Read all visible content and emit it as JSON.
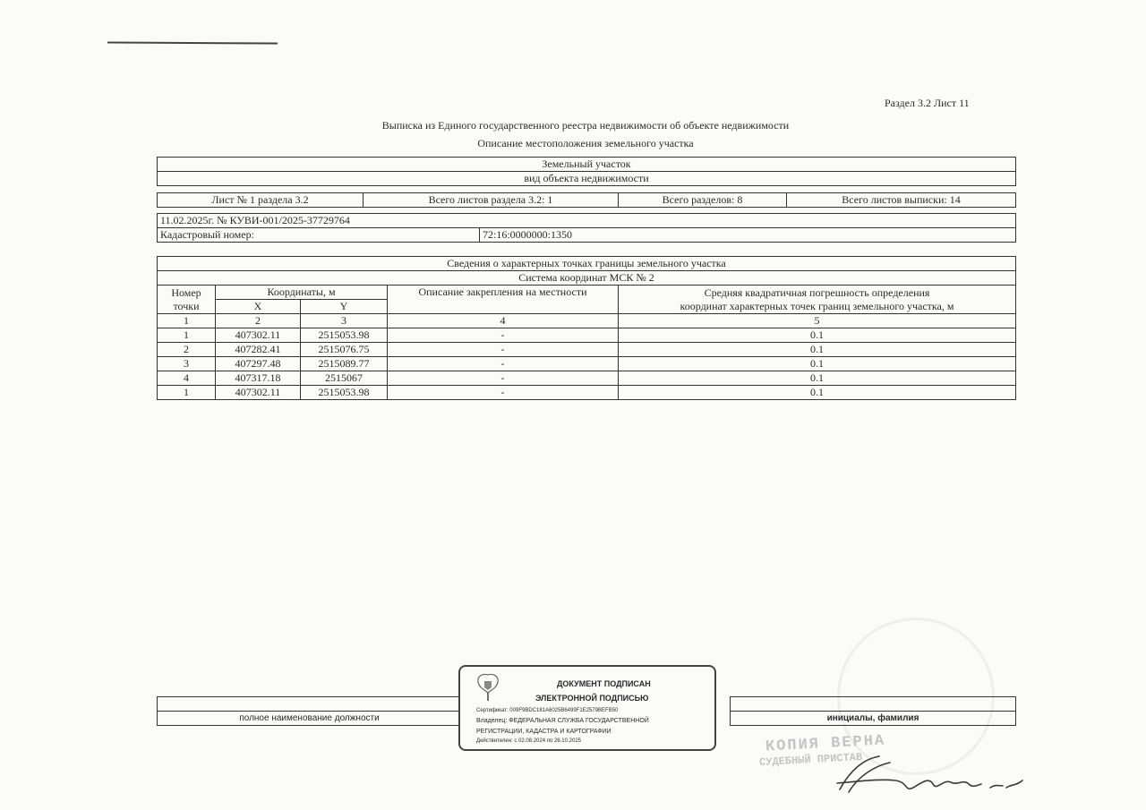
{
  "header": {
    "section_sheet": "Раздел 3.2 Лист 11",
    "title": "Выписка из Единого государственного реестра недвижимости об объекте недвижимости",
    "subtitle": "Описание местоположения земельного участка"
  },
  "object": {
    "type": "Земельный участок",
    "type_caption": "вид объекта недвижимости"
  },
  "sheets": {
    "sheet": "Лист № 1 раздела 3.2",
    "section_sheets": "Всего листов раздела 3.2: 1",
    "sections": "Всего разделов: 8",
    "extract_sheets": "Всего листов выписки: 14"
  },
  "record": {
    "date_number": "11.02.2025г. № КУВИ-001/2025-37729764",
    "cadastral_label": "Кадастровый номер:",
    "cadastral_number": "72:16:0000000:1350"
  },
  "points_table": {
    "title": "Сведения о характерных точках границы земельного участка",
    "system": "Система координат МСК № 2",
    "col_point": "Номер точки",
    "col_coords": "Координаты, м",
    "col_x": "X",
    "col_y": "Y",
    "col_desc": "Описание закрепления на местности",
    "col_error_1": "Средняя квадратичная погрешность определения",
    "col_error_2": "координат характерных точек границ земельного участка, м",
    "col_numbers": [
      "1",
      "2",
      "3",
      "4",
      "5"
    ],
    "rows": [
      {
        "n": "1",
        "x": "407302.11",
        "y": "2515053.98",
        "desc": "-",
        "err": "0.1"
      },
      {
        "n": "2",
        "x": "407282.41",
        "y": "2515076.75",
        "desc": "-",
        "err": "0.1"
      },
      {
        "n": "3",
        "x": "407297.48",
        "y": "2515089.77",
        "desc": "-",
        "err": "0.1"
      },
      {
        "n": "4",
        "x": "407317.18",
        "y": "2515067",
        "desc": "-",
        "err": "0.1"
      },
      {
        "n": "1",
        "x": "407302.11",
        "y": "2515053.98",
        "desc": "-",
        "err": "0.1"
      }
    ]
  },
  "footer": {
    "position_caption": "полное наименование должности",
    "name_caption": "инициалы, фамилия"
  },
  "e_signature": {
    "line1": "ДОКУМЕНТ ПОДПИСАН",
    "line2": "ЭЛЕКТРОННОЙ ПОДПИСЬЮ",
    "certificate": "Сертификат: 009F9BDC181A6025B6499F1E2579BEFB50",
    "owner": "Владелец: ФЕДЕРАЛЬНАЯ СЛУЖБА ГОСУДАРСТВЕННОЙ",
    "owner2": "РЕГИСТРАЦИИ, КАДАСТРА И КАРТОГРАФИИ",
    "validity": "Действителен: с 02.08.2024 по 26.10.2025"
  },
  "certification_stamp": {
    "line1": "КОПИЯ ВЕРНА",
    "line2": "СУДЕБНЫЙ ПРИСТАВ"
  }
}
